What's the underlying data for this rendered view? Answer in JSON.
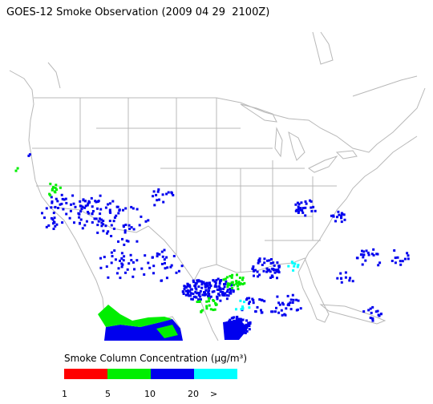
{
  "title": "GOES-12 Smoke Observation (2009 04 29  2100Z)",
  "legend": {
    "title": "Smoke Column Concentration (μg/m³)",
    "colors": [
      "#ff0000",
      "#00ee00",
      "#0000ee",
      "#00ffff"
    ],
    "labels": [
      "1",
      "5",
      "10",
      "20",
      ">"
    ]
  }
}
